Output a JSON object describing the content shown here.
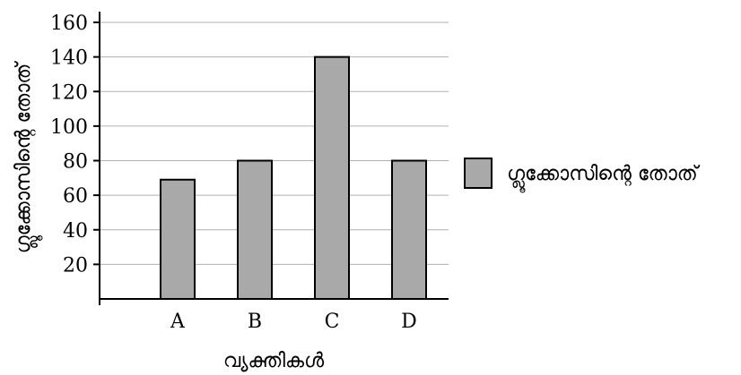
{
  "chart_data": {
    "type": "bar",
    "categories": [
      "A",
      "B",
      "C",
      "D"
    ],
    "series": [
      {
        "name": "ഗ്ലൂക്കോസിന്റെ തോത്",
        "values": [
          69,
          80,
          140,
          80
        ],
        "color": "#a9a9a9"
      }
    ],
    "xlabel": "വ്യക്തികൾ",
    "ylabel": "ഗ്ലൂക്കോസിന്റെ തോത്",
    "ylim": [
      0,
      160
    ],
    "yticks": [
      20,
      40,
      60,
      80,
      100,
      120,
      140,
      160
    ],
    "grid": true,
    "legend_position": "right",
    "colors": {
      "bar_fill": "#a9a9a9",
      "bar_stroke": "#000000",
      "grid": "#b0b0b0",
      "axis": "#000000"
    }
  }
}
